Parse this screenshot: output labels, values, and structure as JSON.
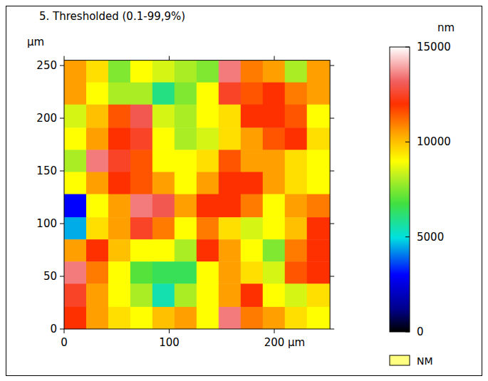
{
  "chart_data": {
    "type": "heatmap",
    "title": "5. Thresholded (0.1-99,9%)",
    "y_label": "µm",
    "xlim": [
      0,
      253
    ],
    "ylim": [
      0,
      255
    ],
    "xticks": [
      0,
      100,
      {
        "value": 200,
        "label": "200 µm"
      }
    ],
    "yticks": [
      0,
      50,
      100,
      150,
      200,
      250
    ],
    "x_edges": [
      0,
      21,
      42,
      63,
      84,
      105,
      126,
      147,
      168,
      189,
      210,
      231,
      253
    ],
    "y_edges": [
      255,
      234,
      213,
      191,
      170,
      149,
      128,
      106,
      85,
      64,
      43,
      21,
      0
    ],
    "cells": [
      [
        10500,
        9500,
        7500,
        9000,
        8500,
        8000,
        7500,
        13500,
        11000,
        10500,
        8000,
        10500
      ],
      [
        10500,
        9000,
        8000,
        8000,
        6000,
        7500,
        9000,
        12500,
        11500,
        12000,
        11000,
        10500
      ],
      [
        8500,
        10000,
        11500,
        13000,
        8500,
        8000,
        9000,
        9500,
        12000,
        12000,
        11500,
        9000
      ],
      [
        9000,
        10500,
        12000,
        12500,
        9000,
        8000,
        8500,
        9500,
        10500,
        11500,
        12000,
        9500
      ],
      [
        8000,
        13500,
        12500,
        11500,
        9000,
        9000,
        9500,
        11500,
        10500,
        10500,
        9500,
        9000
      ],
      [
        9000,
        10500,
        12000,
        11500,
        10500,
        9000,
        10500,
        12000,
        12000,
        10500,
        9500,
        9000
      ],
      [
        3000,
        9000,
        10500,
        13500,
        13000,
        10500,
        12000,
        12000,
        11000,
        9000,
        10500,
        11000
      ],
      [
        4500,
        9500,
        10500,
        12500,
        11000,
        9000,
        11000,
        9500,
        8500,
        9000,
        10000,
        12000
      ],
      [
        10500,
        12000,
        10000,
        9000,
        9000,
        8000,
        12000,
        10500,
        9000,
        7500,
        11000,
        12000
      ],
      [
        13500,
        11000,
        9000,
        7000,
        6500,
        6500,
        9000,
        10500,
        9500,
        8500,
        11500,
        12000
      ],
      [
        12500,
        10500,
        9000,
        8000,
        5500,
        8000,
        9000,
        10500,
        12000,
        9000,
        8500,
        9500
      ],
      [
        12000,
        10500,
        9500,
        9000,
        10000,
        10500,
        9000,
        13500,
        11000,
        10500,
        9500,
        9000
      ]
    ],
    "colorbar": {
      "label": "nm",
      "range": [
        0,
        15000
      ],
      "ticks": [
        0,
        5000,
        10000,
        15000
      ]
    },
    "mask": {
      "name": "NM",
      "color": "#ffff80"
    }
  }
}
